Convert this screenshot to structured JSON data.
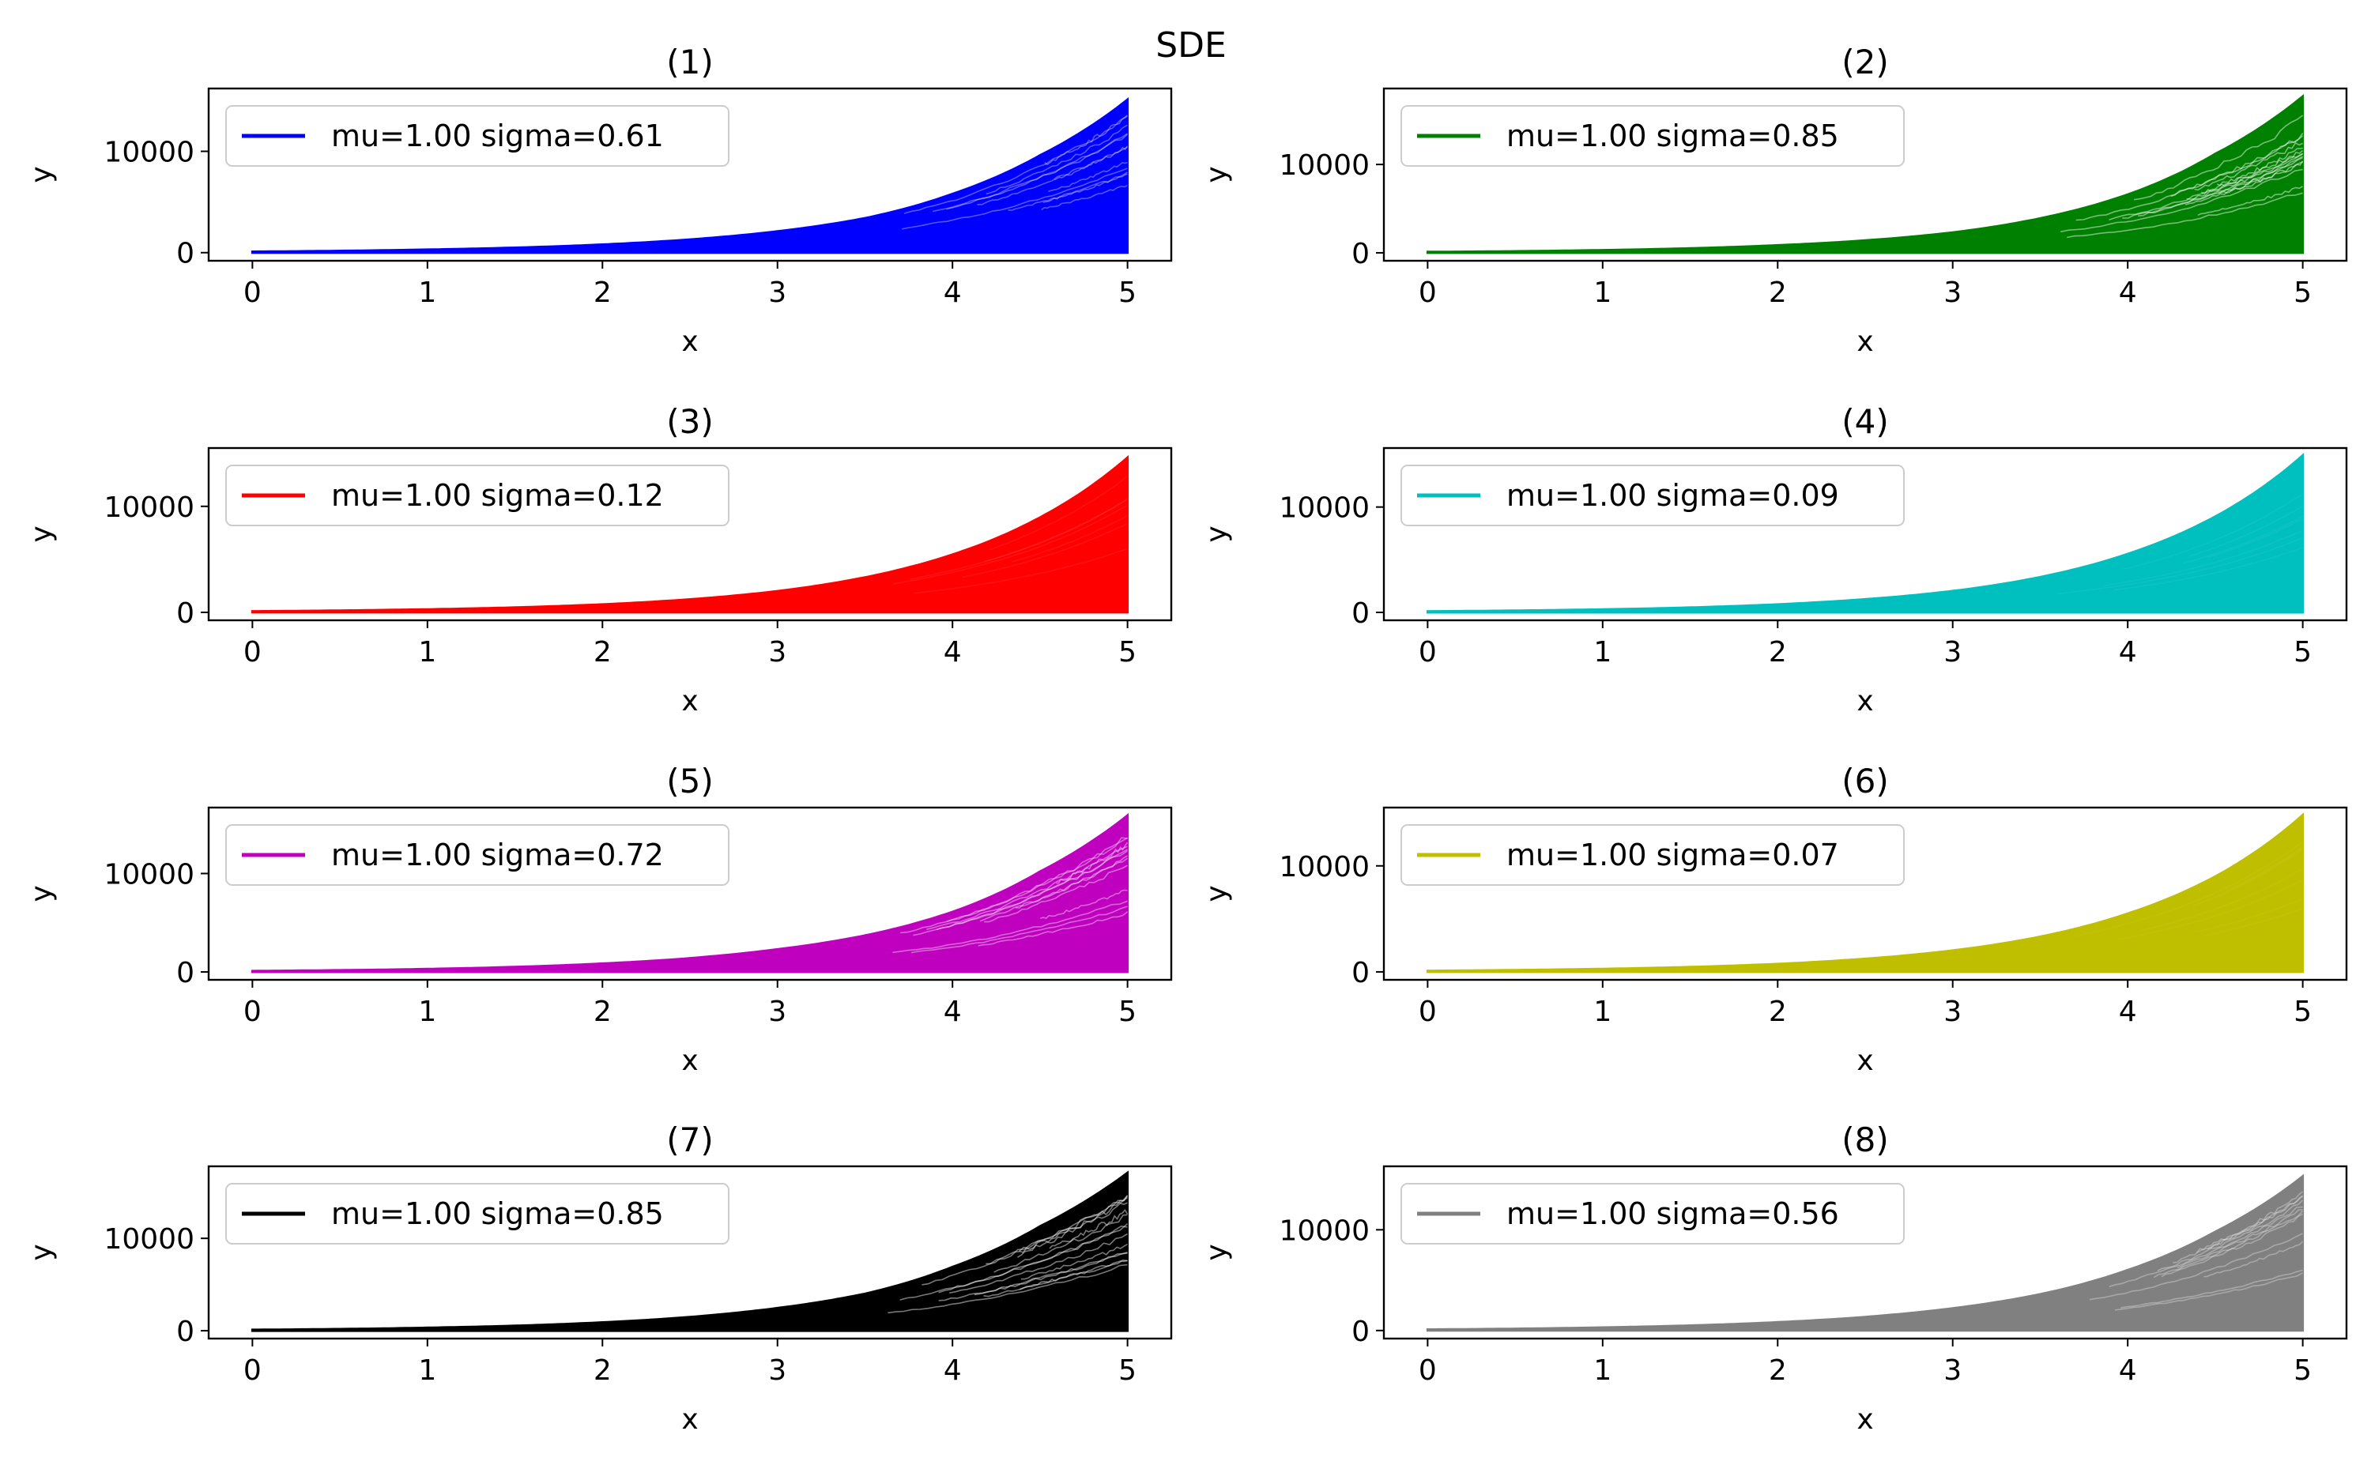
{
  "figure": {
    "title": "SDE"
  },
  "chart_data": [
    {
      "type": "area",
      "title": "(1)",
      "xlabel": "x",
      "ylabel": "y",
      "xlim": [
        0,
        5
      ],
      "ylim": [
        -800,
        16200
      ],
      "xticks": [
        0,
        1,
        2,
        3,
        4,
        5
      ],
      "yticks": [
        0,
        10000
      ],
      "legend_position": "top-left",
      "grid": false,
      "color": "#0000ff",
      "series": [
        {
          "name": "mu=1.00 sigma=0.61",
          "mu": 1.0,
          "sigma": 0.61,
          "envelope_max": [
            [
              0,
              100
            ],
            [
              1,
              300
            ],
            [
              2,
              800
            ],
            [
              3,
              2100
            ],
            [
              3.5,
              3400
            ],
            [
              4,
              5800
            ],
            [
              4.5,
              9600
            ],
            [
              5,
              15100
            ]
          ]
        }
      ]
    },
    {
      "type": "area",
      "title": "(2)",
      "xlabel": "x",
      "ylabel": "y",
      "xlim": [
        0,
        5
      ],
      "ylim": [
        -900,
        18600
      ],
      "xticks": [
        0,
        1,
        2,
        3,
        4,
        5
      ],
      "yticks": [
        0,
        10000
      ],
      "legend_position": "top-left",
      "grid": false,
      "color": "#008000",
      "series": [
        {
          "name": "mu=1.00 sigma=0.85",
          "mu": 1.0,
          "sigma": 0.85,
          "envelope_max": [
            [
              0,
              100
            ],
            [
              1,
              300
            ],
            [
              2,
              850
            ],
            [
              3,
              2300
            ],
            [
              3.5,
              3900
            ],
            [
              4,
              6600
            ],
            [
              4.5,
              11200
            ],
            [
              5,
              17700
            ]
          ]
        }
      ]
    },
    {
      "type": "area",
      "title": "(3)",
      "xlabel": "x",
      "ylabel": "y",
      "xlim": [
        0,
        5
      ],
      "ylim": [
        -750,
        15500
      ],
      "xticks": [
        0,
        1,
        2,
        3,
        4,
        5
      ],
      "yticks": [
        0,
        10000
      ],
      "legend_position": "top-left",
      "grid": false,
      "color": "#ff0000",
      "series": [
        {
          "name": "mu=1.00 sigma=0.12",
          "mu": 1.0,
          "sigma": 0.12,
          "envelope_max": [
            [
              0,
              100
            ],
            [
              1,
              280
            ],
            [
              2,
              750
            ],
            [
              3,
              2000
            ],
            [
              3.5,
              3300
            ],
            [
              4,
              5450
            ],
            [
              4.5,
              8950
            ],
            [
              5,
              14600
            ]
          ]
        }
      ]
    },
    {
      "type": "area",
      "title": "(4)",
      "xlabel": "x",
      "ylabel": "y",
      "xlim": [
        0,
        5
      ],
      "ylim": [
        -750,
        15600
      ],
      "xticks": [
        0,
        1,
        2,
        3,
        4,
        5
      ],
      "yticks": [
        0,
        10000
      ],
      "legend_position": "top-left",
      "grid": false,
      "color": "#00bfbf",
      "series": [
        {
          "name": "mu=1.00 sigma=0.09",
          "mu": 1.0,
          "sigma": 0.09,
          "envelope_max": [
            [
              0,
              100
            ],
            [
              1,
              280
            ],
            [
              2,
              760
            ],
            [
              3,
              2030
            ],
            [
              3.5,
              3350
            ],
            [
              4,
              5550
            ],
            [
              4.5,
              9100
            ],
            [
              5,
              14900
            ]
          ]
        }
      ]
    },
    {
      "type": "area",
      "title": "(5)",
      "xlabel": "x",
      "ylabel": "y",
      "xlim": [
        0,
        5
      ],
      "ylim": [
        -800,
        16700
      ],
      "xticks": [
        0,
        1,
        2,
        3,
        4,
        5
      ],
      "yticks": [
        0,
        10000
      ],
      "legend_position": "top-left",
      "grid": false,
      "color": "#bf00bf",
      "series": [
        {
          "name": "mu=1.00 sigma=0.72",
          "mu": 1.0,
          "sigma": 0.72,
          "envelope_max": [
            [
              0,
              100
            ],
            [
              1,
              300
            ],
            [
              2,
              850
            ],
            [
              3,
              2300
            ],
            [
              3.5,
              3700
            ],
            [
              4,
              6100
            ],
            [
              4.5,
              10200
            ],
            [
              5,
              15900
            ]
          ]
        }
      ]
    },
    {
      "type": "area",
      "title": "(6)",
      "xlabel": "x",
      "ylabel": "y",
      "xlim": [
        0,
        5
      ],
      "ylim": [
        -750,
        15500
      ],
      "xticks": [
        0,
        1,
        2,
        3,
        4,
        5
      ],
      "yticks": [
        0,
        10000
      ],
      "legend_position": "top-left",
      "grid": false,
      "color": "#bfbf00",
      "series": [
        {
          "name": "mu=1.00 sigma=0.07",
          "mu": 1.0,
          "sigma": 0.07,
          "envelope_max": [
            [
              0,
              100
            ],
            [
              1,
              280
            ],
            [
              2,
              750
            ],
            [
              3,
              2020
            ],
            [
              3.5,
              3320
            ],
            [
              4,
              5500
            ],
            [
              4.5,
              9000
            ],
            [
              5,
              14800
            ]
          ]
        }
      ]
    },
    {
      "type": "area",
      "title": "(7)",
      "xlabel": "x",
      "ylabel": "y",
      "xlim": [
        0,
        5
      ],
      "ylim": [
        -850,
        17800
      ],
      "xticks": [
        0,
        1,
        2,
        3,
        4,
        5
      ],
      "yticks": [
        0,
        10000
      ],
      "legend_position": "top-left",
      "grid": false,
      "color": "#000000",
      "series": [
        {
          "name": "mu=1.00 sigma=0.85",
          "mu": 1.0,
          "sigma": 0.85,
          "envelope_max": [
            [
              0,
              100
            ],
            [
              1,
              320
            ],
            [
              2,
              900
            ],
            [
              3,
              2450
            ],
            [
              3.5,
              4000
            ],
            [
              4,
              6900
            ],
            [
              4.5,
              11300
            ],
            [
              5,
              17100
            ]
          ]
        }
      ]
    },
    {
      "type": "area",
      "title": "(8)",
      "xlabel": "x",
      "ylabel": "y",
      "xlim": [
        0,
        5
      ],
      "ylim": [
        -800,
        16300
      ],
      "xticks": [
        0,
        1,
        2,
        3,
        4,
        5
      ],
      "yticks": [
        0,
        10000
      ],
      "legend_position": "top-left",
      "grid": false,
      "color": "#808080",
      "series": [
        {
          "name": "mu=1.00 sigma=0.56",
          "mu": 1.0,
          "sigma": 0.56,
          "envelope_max": [
            [
              0,
              100
            ],
            [
              1,
              300
            ],
            [
              2,
              820
            ],
            [
              3,
              2200
            ],
            [
              3.5,
              3600
            ],
            [
              4,
              6000
            ],
            [
              4.5,
              9800
            ],
            [
              5,
              15300
            ]
          ]
        }
      ]
    }
  ]
}
